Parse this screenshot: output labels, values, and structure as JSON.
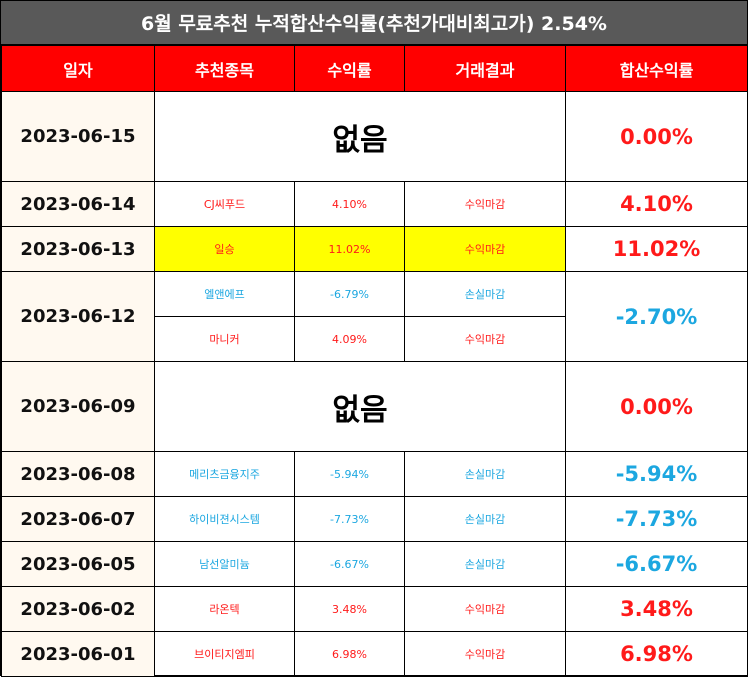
{
  "title": "6월 무료추천 누적합산수익률(추천가대비최고가) 2.54%",
  "headers": {
    "date": "일자",
    "stock": "추천종목",
    "return": "수익률",
    "result": "거래결과",
    "total": "합산수익률"
  },
  "rows": [
    {
      "date": "2023-06-15",
      "none_label": "없음",
      "total": "0.00%"
    },
    {
      "date": "2023-06-14",
      "stock": "CJ씨푸드",
      "return": "4.10%",
      "result": "수익마감",
      "total": "4.10%"
    },
    {
      "date": "2023-06-13",
      "stock": "일승",
      "return": "11.02%",
      "result": "수익마감",
      "total": "11.02%"
    },
    {
      "date": "2023-06-12",
      "stock": "엘앤에프",
      "return": "-6.79%",
      "result": "손실마감",
      "total": "-2.70%",
      "stock_2": "마니커",
      "return_2": "4.09%",
      "result_2": "수익마감"
    },
    {
      "date": "2023-06-09",
      "none_label": "없음",
      "total": "0.00%"
    },
    {
      "date": "2023-06-08",
      "stock": "메리츠금융지주",
      "return": "-5.94%",
      "result": "손실마감",
      "total": "-5.94%"
    },
    {
      "date": "2023-06-07",
      "stock": "하이비젼시스템",
      "return": "-7.73%",
      "result": "손실마감",
      "total": "-7.73%"
    },
    {
      "date": "2023-06-05",
      "stock": "남선알미늄",
      "return": "-6.67%",
      "result": "손실마감",
      "total": "-6.67%"
    },
    {
      "date": "2023-06-02",
      "stock": "라온텍",
      "return": "3.48%",
      "result": "수익마감",
      "total": "3.48%"
    },
    {
      "date": "2023-06-01",
      "stock": "브이티지엠피",
      "return": "6.98%",
      "result": "수익마감",
      "total": "6.98%"
    }
  ],
  "colors": {
    "title_bg": "#595959",
    "header_bg": "#ff0000",
    "profit": "#ff1a1a",
    "loss": "#1ca7e0",
    "highlight": "#ffff00",
    "date_bg": "#fff9f0"
  }
}
